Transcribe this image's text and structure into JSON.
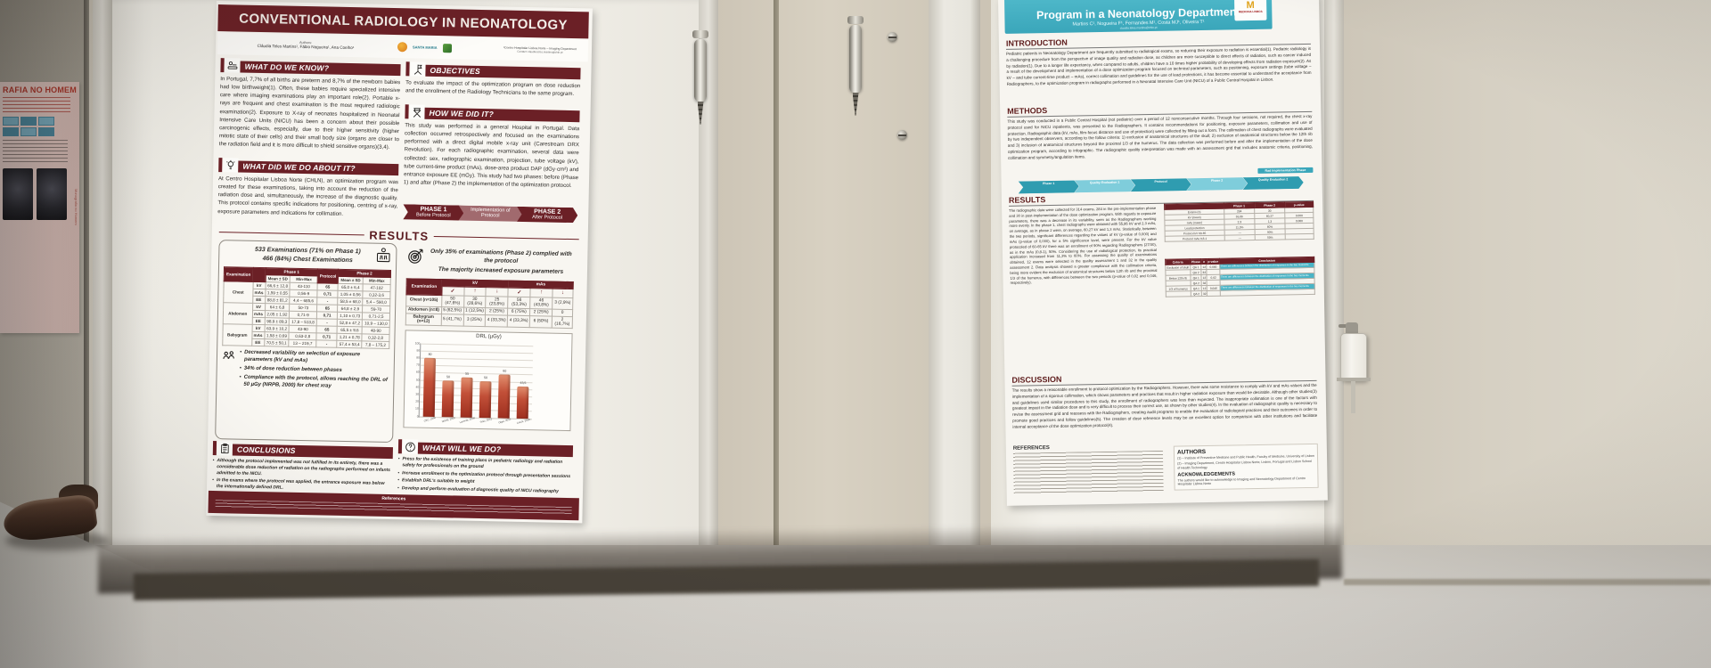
{
  "scene": {
    "colors": {
      "maroon": "#6b2026",
      "teal": "#3fb0c4",
      "wall": "#d2cbbd",
      "board": "#efede6",
      "floor": "#d6d3cd"
    }
  },
  "icons": {
    "know": "reader-icon",
    "objectives": "flag-icon",
    "how": "director-chair-icon",
    "did": "lightbulb-icon",
    "results_scan": "xray-scan-icon",
    "target": "target-icon",
    "team": "team-icon",
    "conclusions": "clipboard-icon",
    "future": "question-icon"
  },
  "side_poster": {
    "title_fragment": "RAFIA NO HOMEM",
    "side_caption": "Monografia no Homem"
  },
  "poster_left": {
    "title": "CONVENTIONAL RADIOLOGY IN NEONATOLOGY",
    "authors_label": "Authors:",
    "authors": "Cláudia Teles Martins¹, Fábio Nogueira¹, Ana Coelho¹",
    "logo1": "SANTA MARIA",
    "affiliation": "¹Centro Hospitalar Lisboa Norte – Imaging Department",
    "contact": "Contact: claudia.teles.martins@chln.pt",
    "know": {
      "title": "WHAT DO WE KNOW?",
      "body": "In Portugal, 7,7% of all births are preterm and 8,7% of the newborn babies had low birthweight(1). Often, these babies require specialized intensive care where imaging examinations play an important role(2). Portable x-rays are frequent and chest examination is the most required radiologic examination(2). Exposure to X-ray of neonates hospitalized in Neonatal Intensive Care Units (NICU) has been a concern about their possible carcinogenic effects, especially, due to their higher sensitivity (higher mitotic state of their cells) and their small body size (organs are closer to the radiation field and it is more difficult to shield sensitive organs)(3,4)."
    },
    "did": {
      "title": "WHAT DID WE DO ABOUT IT?",
      "body": "At Centro Hospitalar Lisboa Norte (CHLN), an optimization program was created for these examinations, taking into account the reduction of the radiation dose and, simultaneously, the increase of the diagnostic quality. This protocol contains specific indications for positioning, centring of x-ray, exposure parameters and indications for collimation."
    },
    "objectives": {
      "title": "OBJECTIVES",
      "body": "To evaluate the impact of the optimization program on dose reduction and the enrollment of the Radiology Technicians to the same program."
    },
    "how": {
      "title": "HOW WE DID IT?",
      "body": "This study was performed in a general Hospital in Portugal. Data collection occurred retrospectively and focused on the examinations performed with a direct digital mobile x-ray unit (Carestream DRX Revolution). For each radiographic examination, several data were collected: sex, radiographic examination, projection, tube voltage (kV), tube current-time product (mAs), dose-area product DAP (dGy·cm²) and entrance exposure EE (mGy). This study had two phases: before (Phase 1) and after (Phase 2) the implementation of the optimization protocol."
    },
    "phases": [
      {
        "phase": "PHASE 1",
        "label": "Before Protocol"
      },
      {
        "phase": "",
        "label": "Implementation of Protocol"
      },
      {
        "phase": "PHASE 2",
        "label": "After Protocol"
      }
    ],
    "results": {
      "title": "RESULTS",
      "stat1": "533 Examinations (71% on Phase 1)",
      "stat2": "466 (84%) Chest Examinations",
      "table1": {
        "h_exam": "Examination",
        "h_p1": "Phase 1",
        "h_prot": "Protocol",
        "h_p2": "Phase 2",
        "h_mean": "Mean ± SD",
        "h_minmax": "Min-Max",
        "rows": [
          [
            "Chest",
            "kV",
            "66,6 ± 12,8",
            "43-110",
            "65",
            "65,0 ± 6,4",
            "47-102"
          ],
          [
            "",
            "mAs",
            "1,59 ± 0,55",
            "0,56-9",
            "0,71",
            "1,05 ± 0,56",
            "0,32-3,6"
          ],
          [
            "",
            "EE",
            "88,8 ± 81,2",
            "4,4 – 685,6",
            "-",
            "58,5 ± 68,0",
            "5,4 – 590,0"
          ],
          [
            "Abdomen",
            "kV",
            "64 ± 6,8",
            "50-73",
            "65",
            "64,8 ± 2,9",
            "59-70"
          ],
          [
            "",
            "mAs",
            "2,05 ± 1,92",
            "0,71-9",
            "0,71",
            "1,10 ± 0,73",
            "0,71-2,5"
          ],
          [
            "",
            "EE",
            "98,9 ± 89,3",
            "17,8 – 513,8",
            "-",
            "52,8 ± 47,2",
            "10,9 – 130,0"
          ],
          [
            "Babygram",
            "kV",
            "63,9 ± 10,2",
            "43-90",
            "65",
            "65,5 ± 9,6",
            "48-90"
          ],
          [
            "",
            "mAs",
            "1,58 ± 0,69",
            "0,63-2,8",
            "0,71",
            "1,21 ± 0,78",
            "0,32-2,8"
          ],
          [
            "",
            "EE",
            "70,5 ± 50,1",
            "13 – 219,7",
            "-",
            "57,4 ± 53,4",
            "7,8 – 175,2"
          ]
        ]
      },
      "highlight1": "Only 35% of examinations (Phase 2) complied with the protocol",
      "highlight2": "The majority increased exposure parameters",
      "table2": {
        "h_exam": "Examination",
        "h_kv": "kV",
        "h_mas": "mAs",
        "symbols": [
          "✓",
          "↑",
          "↓",
          "✓",
          "↑",
          "↓"
        ],
        "rows": [
          [
            "Chest (n=105)",
            "50 (47,6%)",
            "30 (28,6%)",
            "25 (23,8%)",
            "56 (53,3%)",
            "46 (43,8%)",
            "3 (2,9%)"
          ],
          [
            "Abdomen (n=8)",
            "5 (62,5%)",
            "1 (12,5%)",
            "2 (25%)",
            "6 (75%)",
            "2 (25%)",
            "0"
          ],
          [
            "Babygram (n=12)",
            "5 (41,7%)",
            "3 (25%)",
            "4 (33,3%)",
            "4 (33,3%)",
            "6 (50%)",
            "2 (16,7%)"
          ]
        ]
      },
      "bullets": [
        "Decreased variability on selection of exposure parameters (kV and mAs)",
        "34% of dose reduction between phases",
        "Compliance with the protocol, allows reaching the DRL of 50 µGy (NRPB, 2000) for chest xray"
      ]
    },
    "conclusions": {
      "title": "CONCLUSIONS",
      "bullets": [
        "Although the protocol implemented was not fulfilled in its entirety, there was a considerable dose reduction of radiation on the radiographs performed on infants admitted to the NICU.",
        "In the exams where the protocol was applied, the entrance exposure was below the internationally defined DRL."
      ]
    },
    "future": {
      "title": "WHAT WILL WE DO?",
      "bullets": [
        "Press for the existence of training plans in pediatric radiology and radiation safety for professionals on the ground",
        "Increase enrollment to the optimization protocol through presentation sessions",
        "Establish DRL's suitable to weight",
        "Develop and perform evaluation of diagnostic quality of NICU radiography"
      ]
    },
    "references_label": "References"
  },
  "chart_data": {
    "type": "bar",
    "title": "DRL (µGy)",
    "categories": [
      "CEC, 1996",
      "NRPB, 2000",
      "Lacerda, 2008",
      "Tirão, 2012",
      "Olgar, 2013",
      "CHLN, 2018"
    ],
    "values": [
      80,
      50,
      55,
      50,
      60,
      43.5
    ],
    "labels": [
      "80",
      "50",
      "55",
      "50",
      "60",
      "43,5"
    ],
    "xlabel": "",
    "ylabel": "",
    "ylim": [
      0,
      100
    ],
    "grid": true,
    "legend": "none"
  },
  "poster_right": {
    "title": "Program in a Neonatology Department",
    "authors": "Martins C¹, Nogueira F¹, Fernandes M¹, Costa MJ¹, Oliveira T¹",
    "contact": "claudia.teles.martins@chln.pt",
    "logo_m": "M",
    "logo_text": "MEDICINA LISBOA",
    "intro": {
      "title": "INTRODUCTION",
      "body": "Pediatric patients in Neonatology Department are frequently submitted to radiological exams, so reducing their exposure to radiation is essential(1). Pediatric radiology is a challenging procedure from the perspective of image quality and radiation dose, as children are more susceptible to direct effects of radiation, such as cancer induced by radiation(1). Due to a longer life expectancy, when compared to adults, children have a 10 times higher probability of developing effects from radiation exposure(2). As a result of the development and implementation of a dose optimization program focused on technical parameters, such as positioning, exposure settings (tube voltage – kV – and tube current-time product – mAs), correct collimation and guidelines for the use of lead protections, it has become essential to understand the acceptance from Radiographers, to the optimization program in radiographs performed in a Neonatal Intensive Care Unit (NICU) of a Public Central Hospital in Lisbon."
    },
    "methods": {
      "title": "METHODS",
      "body": "This study was conducted in a Public Central Hospital (not pediatric) over a period of 12 nonconsecutive months. Through four sessions, not required, the chest x-ray protocol used for NICU inpatients, was presented to the Radiographers. It contains recommendations for positioning, exposure parameters, collimation and use of protection. Radiographic data (kV, mAs, film-focus distance and use of protection) were collected by filling out a form. The collimation of chest radiographs were evaluated by two independent observers, according to the follow criteria: 1) exclusion of anatomical structures of the skull; 2) exclusion of anatomical structures below the 12th rib and 3) inclusion of anatomical structures beyond the proximal 1/3 of the humerus. The data collection was performed before and after the implementation of the dose optimization program, according to infographic. The radiographic quality interpretation was made with an assessment grid that includes anatomic criteria, positioning, collimation and symmetry/angulation items.",
      "phase_banner": "Rad Implementation Phase",
      "phases": [
        "Phase 1",
        "Quality Evaluation 1",
        "Protocol",
        "Phase 2",
        "Quality Evaluation 2"
      ]
    },
    "results": {
      "title": "RESULTS",
      "body": "The radiographic data were collected for 314 exams, 284 in the pre-implementation phase and 30 in post-implementation of the dose optimization program. With regards to exposure parameters, there was a decrease in its variability, seen as the Radiographers working more evenly. In the phase 1, chest radiographs were obtained with 55,86 kV and 2,3 mAs, on average, as in phase 2 were, on average, 60,27 kV and 1,3 mAs. Statistically, between the two periods, significant differences regarding the values of kV (p-value of 0,000) and mAs (p-value of 0,000), for a 5% significance level, were present. For the kV value protocoled of 60-65 kV there was an enrollment of 90% regarding Radiographers (27/30), as in the mAs (0,8-1), 50%. Considering the use of radiological protection, its practical application increased from 11,3% to 60%. For assessing the quality of examinations obtained, 12 exams were selected in the quality assessment 1 and 32 in the quality assessment 2. Data analysis showed a greater compliance with the collimation criteria, being more evident the exclusion of anatomical structures below 12th rib and the proximal 1/3 of the humerus, with differences between the two periods (p-value of 0,02 and 0,046, respectively).",
      "tableA": {
        "head": [
          "",
          "Phase 1",
          "Phase 2",
          "p-value"
        ],
        "rows": [
          [
            "Exams (n)",
            "284",
            "30",
            ""
          ],
          [
            "kV (mean)",
            "55,86",
            "60,27",
            "0,000"
          ],
          [
            "mAs (mean)",
            "2,3",
            "1,3",
            "0,000"
          ],
          [
            "Lead protection",
            "11,3%",
            "60%",
            ""
          ],
          [
            "Protocol kV 60-65",
            "—",
            "90%",
            ""
          ],
          [
            "Protocol mAs 0,8-1",
            "—",
            "50%",
            ""
          ]
        ]
      },
      "tableB": {
        "head": [
          "Criteria",
          "Phase",
          "n",
          "p-value",
          "Conclusion"
        ],
        "rows": [
          [
            "Exclusion of skull",
            "QA 1",
            "12",
            "0,000",
            "^There are differences between the distribution of responses in the two moments"
          ],
          [
            "",
            "QA 2",
            "32",
            "",
            ""
          ],
          [
            "Below 12th rib",
            "QA 1",
            "12",
            "0,02",
            "^There are differences between the distribution of responses in the two moments"
          ],
          [
            "",
            "QA 2",
            "32",
            "",
            ""
          ],
          [
            "1/3 of humerus",
            "QA 1",
            "12",
            "0,046",
            "^There are differences between the distribution of responses in the two moments"
          ],
          [
            "",
            "QA 2",
            "32",
            "",
            ""
          ]
        ]
      }
    },
    "discussion": {
      "title": "DISCUSSION",
      "body": "The results show a reasonable enrollment to protocol optimization by the Radiographers. However, there was some resistance to comply with kV and mAs values and the implementation of a rigorous collimation, which shows parameters and practices that result in higher radiation exposure than would be desirable. Although other studies(3) and guidelines used similar procedures to this study, the enrollment of radiographers was less than expected. The inappropriate collimation is one of the factors with greatest impact in the radiation dose and is very difficult to process their correct use, as shown by other studies(4). In the evaluation of radiographic quality is necessary to revise the assessment grid and reassess with the Radiographers, creating audit programs to enable the evaluation of radiological practices and their outcomes in order to promote good practices and follow guidelines(5). The creation of dose reference levels may be an excellent option for comparison with other institutions and facilitate internal acceptance of the dose optimization protocol(4)."
    },
    "references_label": "REFERENCES",
    "authors_box": {
      "title": "AUTHORS",
      "lines": [
        "(1) – Institute of Preventive Medicine and Public Health, Faculty of Medicine, University of Lisbon",
        "(2) – Imaging Department, Centro Hospitalar Lisboa Norte, Lisbon, Portugal and Lisbon School of Health Technology"
      ],
      "ack_title": "ACKNOWLEDGEMENTS",
      "ack": "The authors would like to acknowledge to Imaging and Neonatology Department of Centro Hospitalar Lisboa Norte"
    }
  }
}
